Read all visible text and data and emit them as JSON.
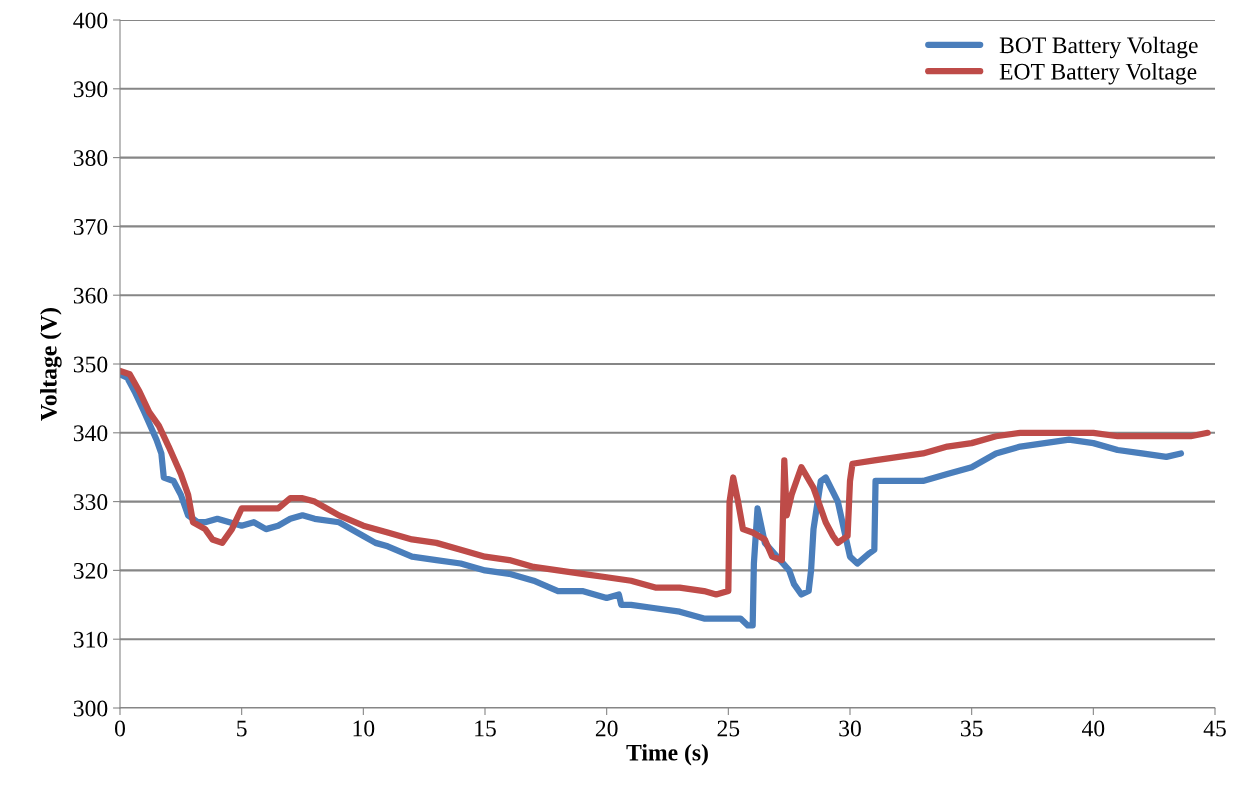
{
  "chart_data": {
    "type": "line",
    "xlabel": "Time (s)",
    "ylabel": "Voltage (V)",
    "xlim": [
      0,
      45
    ],
    "xticks": [
      0,
      5,
      10,
      15,
      20,
      25,
      30,
      35,
      40,
      45
    ],
    "ylim": [
      300,
      400
    ],
    "yticks": [
      300,
      310,
      320,
      330,
      340,
      350,
      360,
      370,
      380,
      390,
      400
    ],
    "grid": "y",
    "legend": "top right",
    "marker": "none",
    "line_style": "solid",
    "series": [
      {
        "name": "BOT Battery Voltage",
        "color": "#4a7ebb",
        "x": [
          0,
          0.3,
          0.6,
          1,
          1.5,
          1.7,
          1.8,
          2.2,
          2.5,
          2.8,
          3.2,
          3.5,
          4,
          4.5,
          5,
          5.5,
          6,
          6.5,
          7,
          7.5,
          8,
          9,
          10,
          10.5,
          11,
          12,
          13,
          14,
          15,
          16,
          17,
          18,
          19,
          20,
          20.5,
          20.6,
          21,
          22,
          23,
          24,
          25,
          25.5,
          25.8,
          26,
          26.05,
          26.2,
          26.5,
          27,
          27.5,
          27.7,
          28,
          28.3,
          28.4,
          28.5,
          28.8,
          29,
          29.5,
          30,
          30.3,
          30.8,
          31,
          31.05,
          32,
          33,
          34,
          35,
          36,
          37,
          38,
          39,
          40,
          41,
          42,
          43,
          43.6
        ],
        "values": [
          348.5,
          348,
          346,
          343,
          339,
          337,
          333.5,
          333,
          331,
          328,
          327,
          327,
          327.5,
          327,
          326.5,
          327,
          326,
          326.5,
          327.5,
          328,
          327.5,
          327,
          325,
          324,
          323.5,
          322,
          321.5,
          321,
          320,
          319.5,
          318.5,
          317,
          317,
          316,
          316.5,
          315,
          315,
          314.5,
          314,
          313,
          313,
          313,
          312,
          312,
          321,
          329,
          324,
          322,
          320,
          318,
          316.5,
          317,
          320,
          326,
          333,
          333.5,
          330,
          322,
          321,
          322.5,
          323,
          333,
          333,
          333,
          334,
          335,
          337,
          338,
          338.5,
          339,
          338.5,
          337.5,
          337,
          336.5,
          337
        ]
      },
      {
        "name": "EOT Battery Voltage",
        "color": "#be4b48",
        "x": [
          0,
          0.4,
          0.8,
          1.2,
          1.6,
          2,
          2.5,
          2.8,
          3,
          3.5,
          3.8,
          4.2,
          4.6,
          5,
          5.5,
          6,
          6.5,
          7,
          7.5,
          8,
          8.5,
          9,
          10,
          11,
          12,
          13,
          14,
          15,
          16,
          17,
          18,
          19,
          20,
          21,
          22,
          23,
          24,
          24.5,
          25,
          25.05,
          25.2,
          25.4,
          25.6,
          26,
          26.5,
          26.8,
          27.2,
          27.3,
          27.4,
          27.6,
          28,
          28.5,
          29,
          29.3,
          29.5,
          29.9,
          30,
          30.1,
          31,
          32,
          33,
          34,
          35,
          36,
          37,
          38,
          39,
          40,
          41,
          42,
          43,
          44,
          44.7
        ],
        "values": [
          349,
          348.5,
          346,
          343,
          341,
          338,
          334,
          331,
          327,
          326,
          324.5,
          324,
          326,
          329,
          329,
          329,
          329,
          330.5,
          330.5,
          330,
          329,
          328,
          326.5,
          325.5,
          324.5,
          324,
          323,
          322,
          321.5,
          320.5,
          320,
          319.5,
          319,
          318.5,
          317.5,
          317.5,
          317,
          316.5,
          317,
          330,
          333.5,
          330,
          326,
          325.5,
          324.5,
          322,
          321.5,
          336,
          328,
          331,
          335,
          332,
          327,
          325,
          324,
          325,
          333,
          335.5,
          336,
          336.5,
          337,
          338,
          338.5,
          339.5,
          340,
          340,
          340,
          340,
          339.5,
          339.5,
          339.5,
          339.5,
          340
        ]
      }
    ]
  }
}
